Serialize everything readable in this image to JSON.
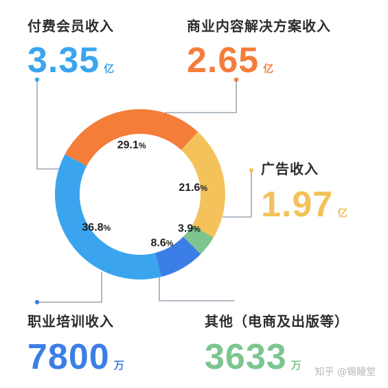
{
  "chart_data": {
    "type": "pie",
    "style": "donut",
    "unit": "%",
    "slices": [
      {
        "key": "membership",
        "name": "付费会员收入",
        "percent": 36.8,
        "value": "3.35",
        "unit": "亿",
        "color": "#3aa5ee"
      },
      {
        "key": "content",
        "name": "商业内容解决方案收入",
        "percent": 29.1,
        "value": "2.65",
        "unit": "亿",
        "color": "#f47d3a"
      },
      {
        "key": "ads",
        "name": "广告收入",
        "percent": 21.6,
        "value": "1.97",
        "unit": "亿",
        "color": "#f3c25a"
      },
      {
        "key": "other",
        "name": "其他（电商及出版等）",
        "percent": 3.9,
        "value": "3633",
        "unit": "万",
        "color": "#7cc58f"
      },
      {
        "key": "training",
        "name": "职业培训收入",
        "percent": 8.6,
        "value": "7800",
        "unit": "万",
        "color": "#3b7ee6"
      }
    ]
  },
  "colors": {
    "title_text": "#2c2c2c",
    "slice_label": "#1f1f1f",
    "leader_line": "#9aa6b2",
    "donut_hole": "#ffffff"
  },
  "watermark": "知乎 @锡鳗堂"
}
